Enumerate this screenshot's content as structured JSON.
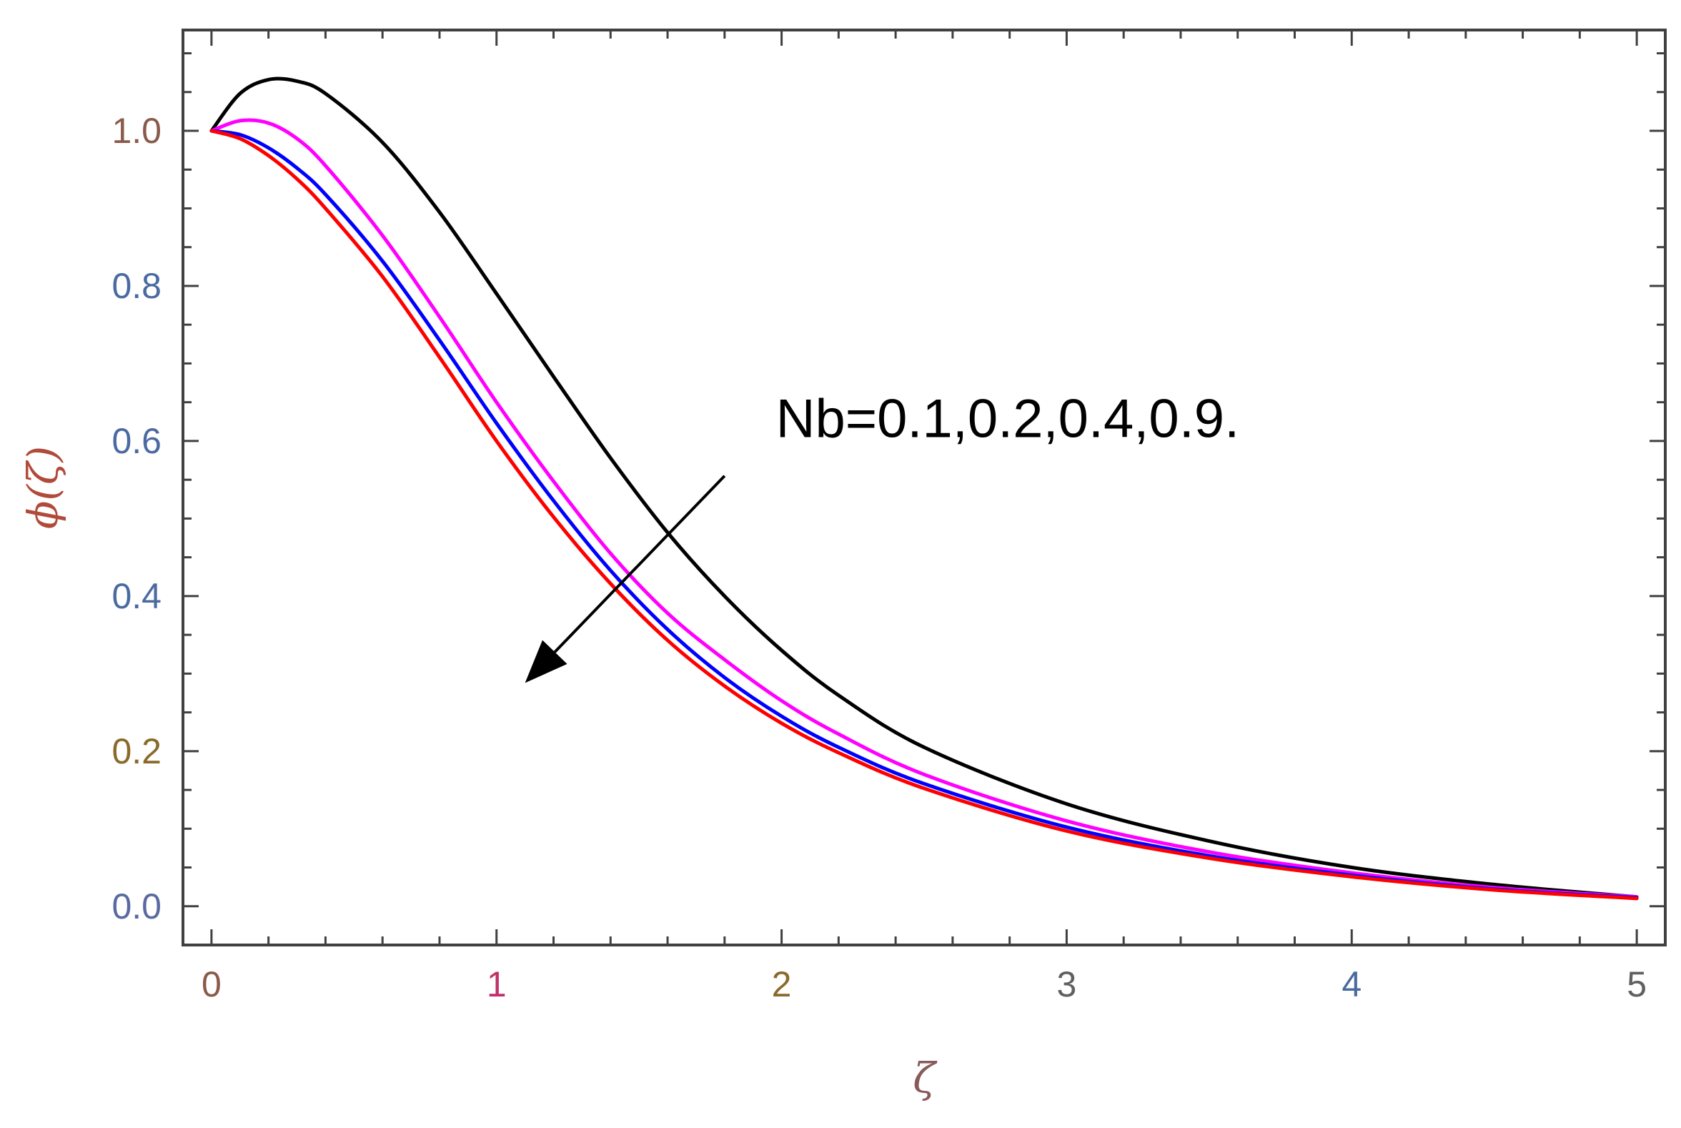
{
  "chart_data": {
    "type": "line",
    "title": "",
    "xlabel": "ζ",
    "ylabel": "ϕ(ζ)",
    "xlim": [
      -0.1,
      5.1
    ],
    "ylim": [
      -0.05,
      1.13
    ],
    "x_ticks": [
      {
        "value": 0,
        "label": "0",
        "color": "#8a5a4a"
      },
      {
        "value": 1,
        "label": "1",
        "color": "#c0306a"
      },
      {
        "value": 2,
        "label": "2",
        "color": "#8a6a2a"
      },
      {
        "value": 3,
        "label": "3",
        "color": "#606060"
      },
      {
        "value": 4,
        "label": "4",
        "color": "#4a6aa0"
      },
      {
        "value": 5,
        "label": "5",
        "color": "#606060"
      }
    ],
    "y_ticks": [
      {
        "value": 0.0,
        "label": "0.0",
        "color": "#5a6aa0"
      },
      {
        "value": 0.2,
        "label": "0.2",
        "color": "#8a6a2a"
      },
      {
        "value": 0.4,
        "label": "0.4",
        "color": "#4a6aa0"
      },
      {
        "value": 0.6,
        "label": "0.6",
        "color": "#4a6aa0"
      },
      {
        "value": 0.8,
        "label": "0.8",
        "color": "#4a6aa0"
      },
      {
        "value": 1.0,
        "label": "1.0",
        "color": "#8a5a4a"
      }
    ],
    "x_minor_step": 0.2,
    "y_minor_step": 0.05,
    "series": [
      {
        "color": "#000000",
        "x": [
          0,
          0.1,
          0.2,
          0.3,
          0.4,
          0.6,
          0.8,
          1.0,
          1.2,
          1.4,
          1.6,
          1.8,
          2.0,
          2.2,
          2.5,
          3.0,
          3.5,
          4.0,
          4.5,
          5.0
        ],
        "y": [
          1.0,
          1.048,
          1.066,
          1.064,
          1.048,
          0.985,
          0.895,
          0.79,
          0.683,
          0.578,
          0.482,
          0.4,
          0.33,
          0.272,
          0.205,
          0.132,
          0.084,
          0.05,
          0.028,
          0.012
        ]
      },
      {
        "color": "#ff00ff",
        "x": [
          0,
          0.1,
          0.2,
          0.3,
          0.4,
          0.6,
          0.8,
          1.0,
          1.2,
          1.4,
          1.6,
          1.8,
          2.0,
          2.2,
          2.5,
          3.0,
          3.5,
          4.0,
          4.5,
          5.0
        ],
        "y": [
          1.0,
          1.013,
          1.01,
          0.99,
          0.955,
          0.865,
          0.76,
          0.65,
          0.548,
          0.455,
          0.378,
          0.318,
          0.265,
          0.222,
          0.17,
          0.11,
          0.07,
          0.043,
          0.024,
          0.012
        ]
      },
      {
        "color": "#0000ff",
        "x": [
          0,
          0.1,
          0.2,
          0.3,
          0.4,
          0.6,
          0.8,
          1.0,
          1.2,
          1.4,
          1.6,
          1.8,
          2.0,
          2.2,
          2.5,
          3.0,
          3.5,
          4.0,
          4.5,
          5.0
        ],
        "y": [
          1.0,
          0.995,
          0.978,
          0.952,
          0.918,
          0.832,
          0.73,
          0.623,
          0.523,
          0.433,
          0.357,
          0.295,
          0.245,
          0.205,
          0.158,
          0.102,
          0.065,
          0.04,
          0.022,
          0.011
        ]
      },
      {
        "color": "#ff0000",
        "x": [
          0,
          0.1,
          0.2,
          0.3,
          0.4,
          0.6,
          0.8,
          1.0,
          1.2,
          1.4,
          1.6,
          1.8,
          2.0,
          2.2,
          2.5,
          3.0,
          3.5,
          4.0,
          4.5,
          5.0
        ],
        "y": [
          1.0,
          0.99,
          0.968,
          0.938,
          0.9,
          0.812,
          0.708,
          0.6,
          0.502,
          0.416,
          0.343,
          0.284,
          0.236,
          0.198,
          0.152,
          0.097,
          0.062,
          0.038,
          0.021,
          0.01
        ]
      }
    ],
    "annotation": {
      "text": "Nb=0.1,0.2,0.4,0.9.",
      "anchor_x": 1.98,
      "anchor_y": 0.605,
      "arrow_from": [
        1.8,
        0.555
      ],
      "arrow_to": [
        1.1,
        0.288
      ]
    }
  }
}
